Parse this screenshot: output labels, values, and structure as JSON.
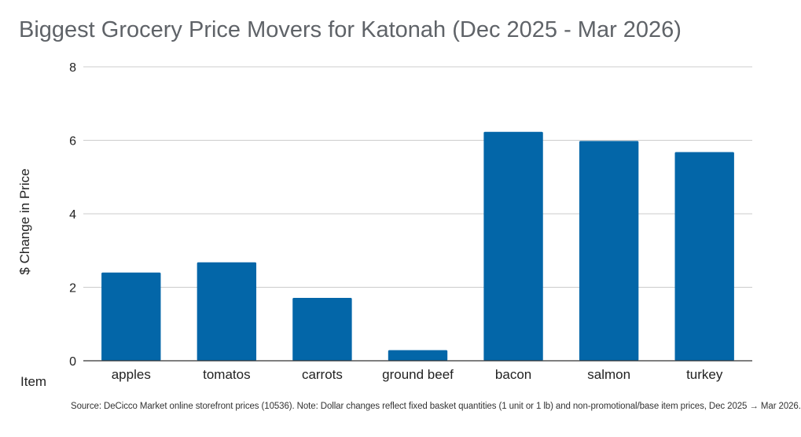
{
  "chart_data": {
    "type": "bar",
    "title": "Biggest Grocery Price Movers for Katonah (Dec 2025 - Mar 2026)",
    "xlabel": "Item",
    "ylabel": "$ Change in Price",
    "categories": [
      "apples",
      "tomatos",
      "carrots",
      "ground beef",
      "bacon",
      "salmon",
      "turkey"
    ],
    "values": [
      2.4,
      2.68,
      1.71,
      0.29,
      6.23,
      5.98,
      5.68
    ],
    "ylim": [
      0,
      8
    ],
    "yticks": [
      0,
      2,
      4,
      6,
      8
    ],
    "grid": true,
    "bar_color": "#0366a8",
    "source": "Source: DeCicco Market online storefront prices (10536). Note: Dollar changes reflect fixed basket quantities (1 unit or 1 lb) and non-promotional/base item prices, Dec 2025 → Mar 2026."
  }
}
